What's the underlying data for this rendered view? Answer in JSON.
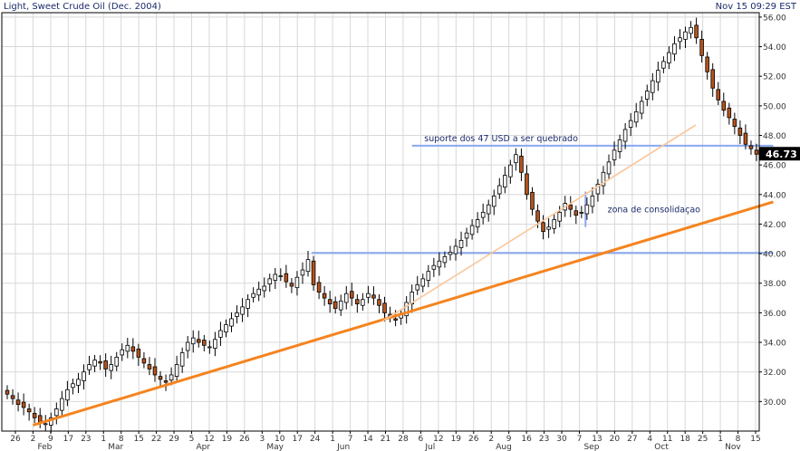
{
  "header": {
    "title": "Light, Sweet Crude Oil (Dec. 2004)",
    "timestamp": "Nov 15 09:29 EST"
  },
  "colors": {
    "text": "#1b2a6b",
    "grid": "#d8d8d8",
    "axis": "#000000",
    "up_candle": "#ffffff",
    "down_candle": "#b5531b",
    "trendline_strong": "#f5841f",
    "trendline_light": "#f9c79a",
    "horizontal_lines": "#8aa8f0",
    "price_tag_bg": "#000000",
    "price_tag_fg": "#ffffff"
  },
  "chart_data": {
    "type": "candlestick",
    "title": "Light, Sweet Crude Oil (Dec. 2004)",
    "ylim": [
      28,
      56.3
    ],
    "y_ticks": [
      "30.00",
      "32.00",
      "34.00",
      "36.00",
      "38.00",
      "40.00",
      "42.00",
      "44.00",
      "46.00",
      "48.00",
      "50.00",
      "52.00",
      "54.00",
      "56.00"
    ],
    "x_day_labels": [
      "26",
      "2",
      "9",
      "17",
      "23",
      "1",
      "8",
      "15",
      "22",
      "29",
      "5",
      "12",
      "19",
      "26",
      "3",
      "10",
      "17",
      "24",
      "1",
      "7",
      "14",
      "21",
      "28",
      "6",
      "12",
      "19",
      "26",
      "2",
      "9",
      "16",
      "23",
      "30",
      "7",
      "13",
      "20",
      "27",
      "4",
      "11",
      "18",
      "25",
      "1",
      "8",
      "15"
    ],
    "x_month_labels": [
      {
        "label": "Feb",
        "at": 1
      },
      {
        "label": "Mar",
        "at": 5
      },
      {
        "label": "Apr",
        "at": 10
      },
      {
        "label": "May",
        "at": 14
      },
      {
        "label": "Jun",
        "at": 18
      },
      {
        "label": "Jul",
        "at": 23
      },
      {
        "label": "Aug",
        "at": 27
      },
      {
        "label": "Sep",
        "at": 32
      },
      {
        "label": "Oct",
        "at": 36
      },
      {
        "label": "Nov",
        "at": 40
      }
    ],
    "last_price": "46.73",
    "annotations": [
      {
        "text": "suporte dos 47 USD a ser quebrado",
        "x": 23.2,
        "y": 47.6
      },
      {
        "text": "zona de consolidaçao",
        "x": 33.6,
        "y": 42.8
      }
    ],
    "horizontal_lines": [
      {
        "y": 47.3,
        "x_from": 22.5,
        "x_to": 43.0
      },
      {
        "y": 40.05,
        "x_from": 16.8,
        "x_to": 43.0
      }
    ],
    "consolidation_marker": {
      "x": 32.35,
      "y_from": 44.2,
      "y_to": 41.8
    },
    "trendlines": [
      {
        "style": "strong",
        "from": [
          1.0,
          28.4
        ],
        "to": [
          43.0,
          43.5
        ]
      },
      {
        "style": "light",
        "from": [
          20.8,
          35.4
        ],
        "to": [
          38.6,
          48.7
        ]
      }
    ],
    "closes": [
      30.5,
      30.2,
      29.8,
      29.6,
      29.3,
      28.9,
      28.6,
      28.5,
      28.9,
      29.5,
      30.2,
      30.8,
      31.2,
      31.5,
      32.0,
      32.5,
      32.8,
      32.6,
      32.2,
      32.5,
      33.0,
      33.5,
      33.8,
      33.4,
      33.0,
      32.6,
      32.2,
      31.8,
      31.5,
      31.3,
      31.8,
      32.5,
      33.3,
      34.0,
      34.3,
      34.0,
      33.8,
      33.7,
      34.2,
      34.8,
      35.2,
      35.6,
      36.0,
      36.4,
      36.9,
      37.3,
      37.6,
      37.8,
      38.3,
      38.6,
      38.5,
      38.1,
      37.8,
      38.4,
      38.9,
      39.6,
      37.9,
      37.4,
      37.0,
      36.6,
      36.3,
      36.8,
      37.3,
      37.0,
      36.6,
      36.9,
      37.3,
      37.0,
      36.5,
      36.0,
      35.7,
      35.5,
      35.9,
      36.7,
      37.4,
      37.9,
      38.3,
      38.8,
      39.2,
      39.5,
      39.8,
      40.1,
      40.5,
      40.9,
      41.4,
      41.9,
      42.3,
      42.8,
      43.3,
      43.9,
      44.6,
      45.3,
      46.0,
      46.7,
      45.5,
      44.0,
      43.0,
      42.2,
      41.5,
      41.8,
      42.3,
      42.8,
      43.4,
      43.0,
      42.6,
      42.8,
      43.3,
      43.9,
      44.7,
      45.5,
      46.2,
      47.0,
      47.7,
      48.4,
      49.0,
      49.6,
      50.3,
      51.0,
      51.7,
      52.4,
      53.0,
      53.6,
      54.2,
      54.6,
      55.0,
      55.3,
      54.6,
      53.4,
      52.3,
      51.2,
      50.4,
      49.7,
      49.2,
      48.6,
      48.0,
      47.4,
      47.1,
      46.73
    ]
  }
}
